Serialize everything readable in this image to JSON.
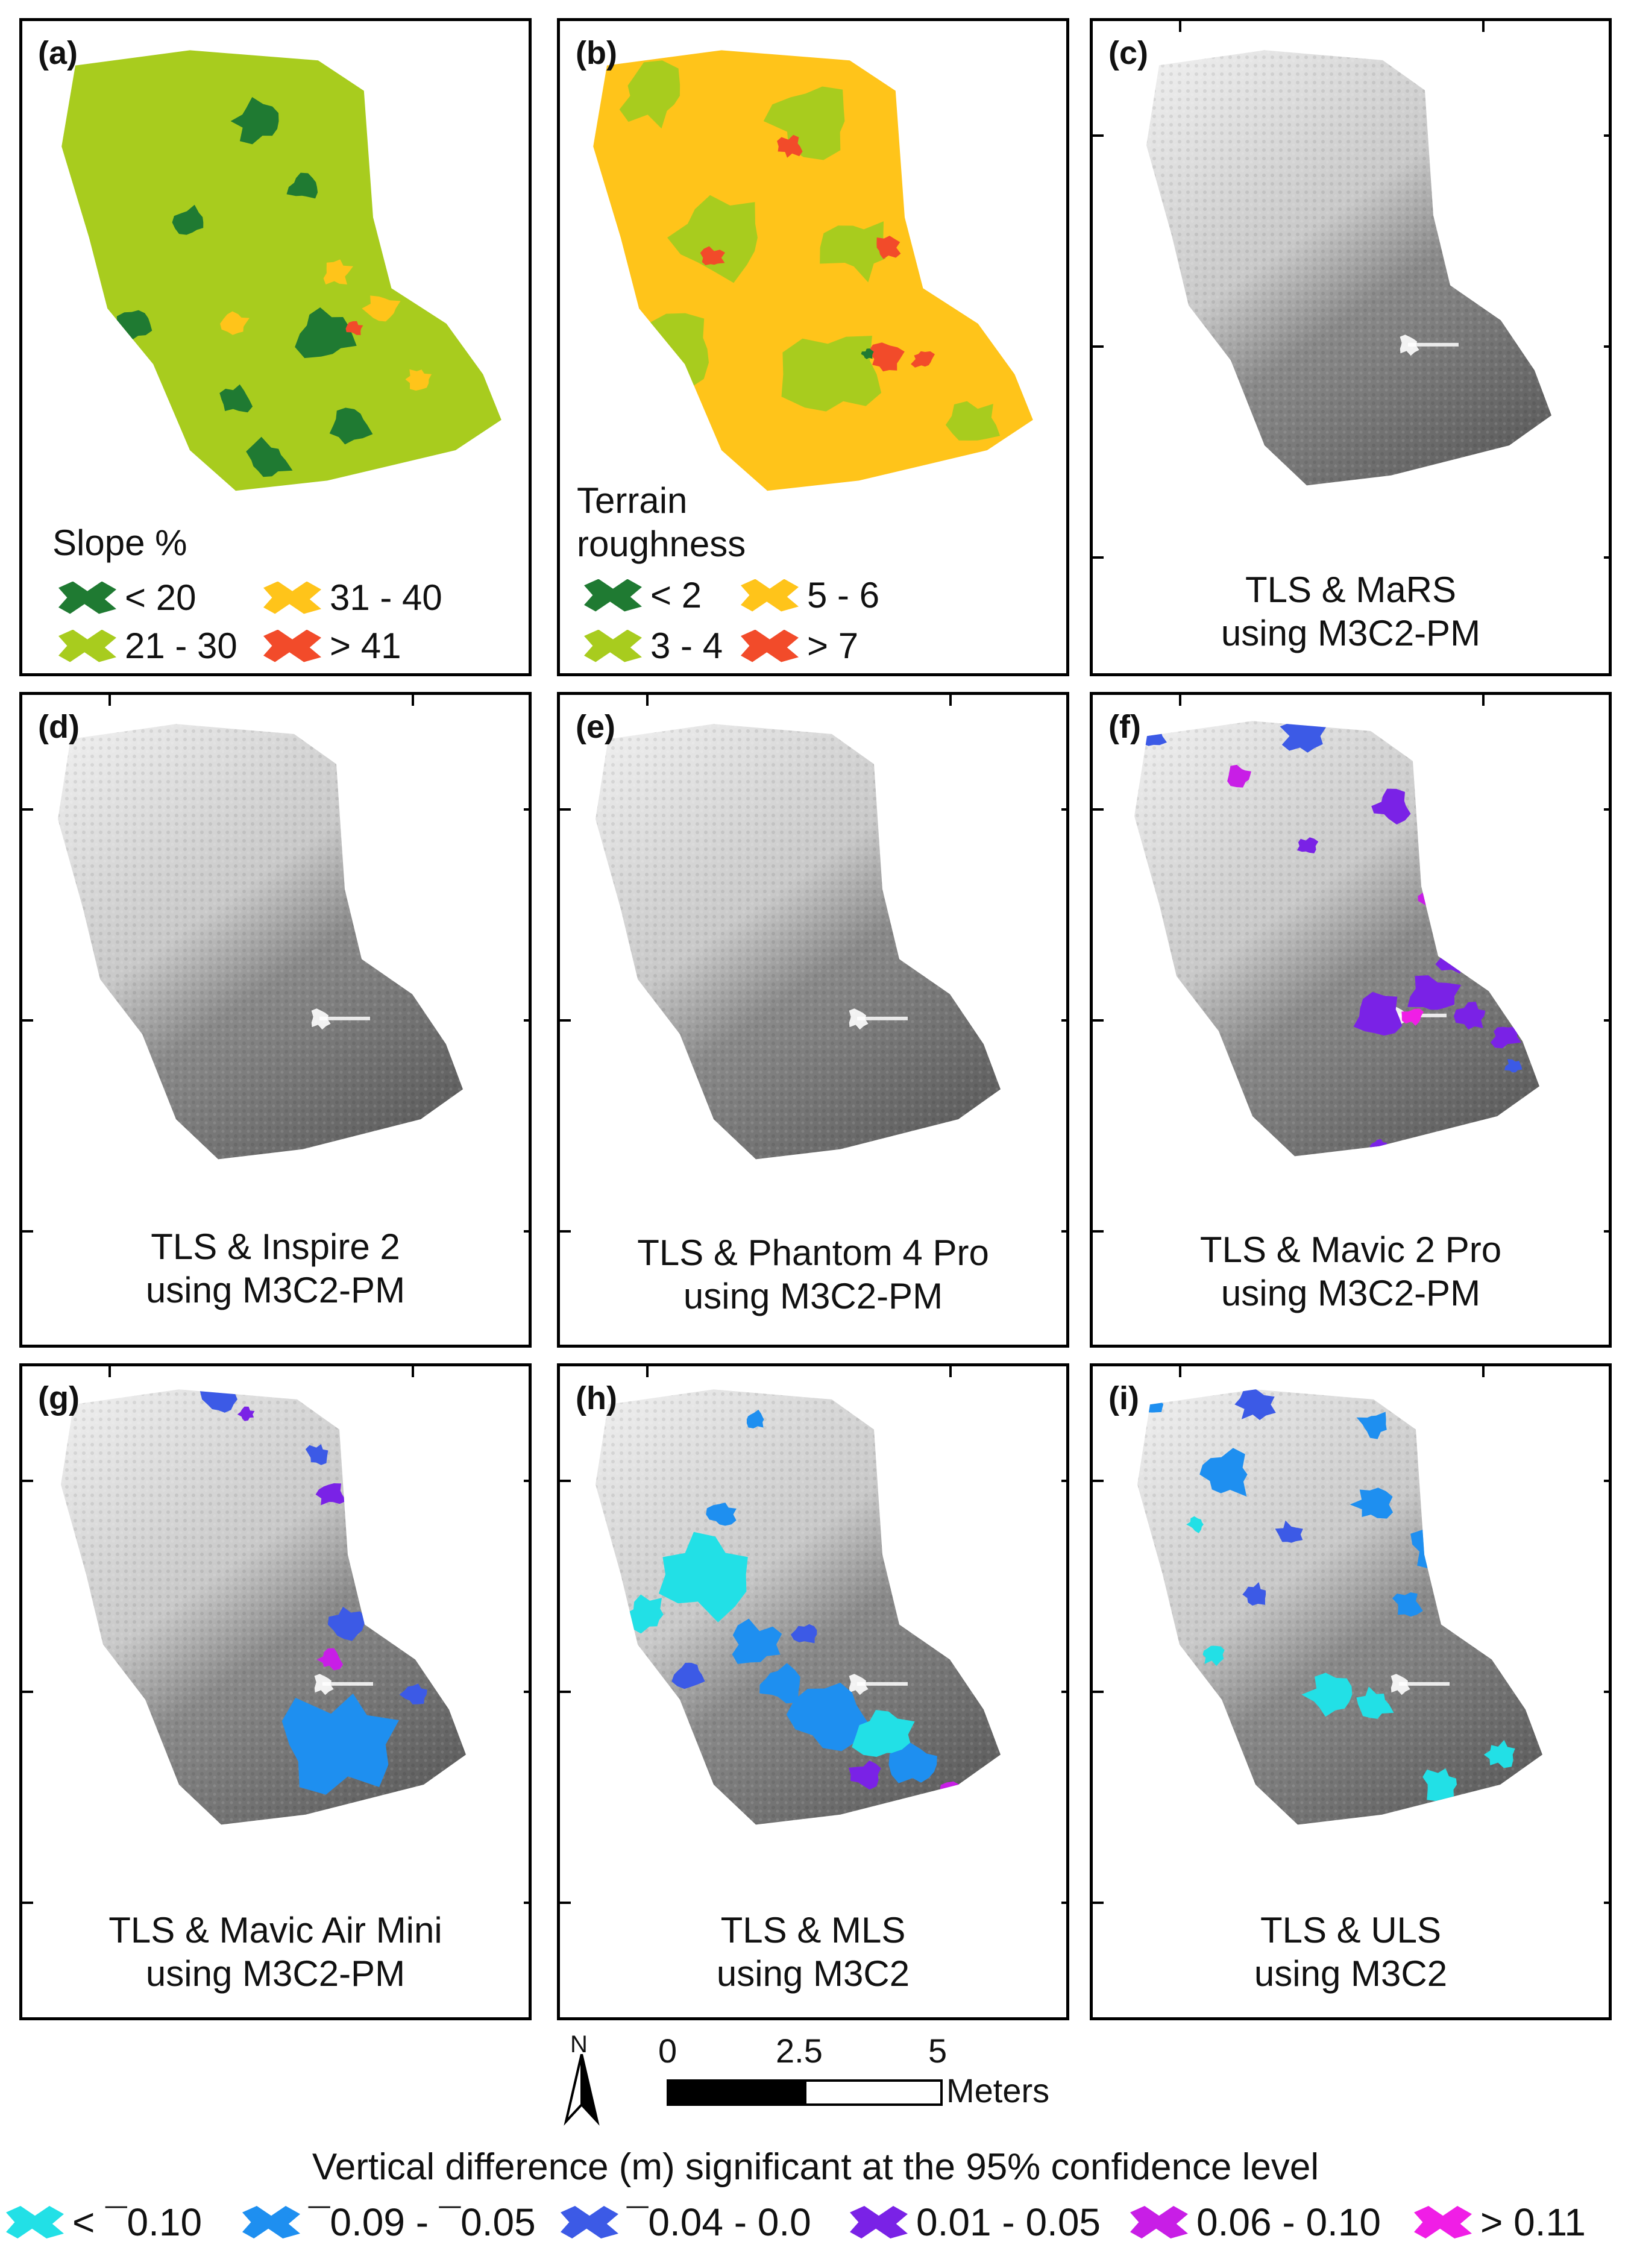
{
  "panels": [
    {
      "id": "a",
      "label": "(a)",
      "caption": "",
      "type": "slope"
    },
    {
      "id": "b",
      "label": "(b)",
      "caption": "",
      "type": "roughness"
    },
    {
      "id": "c",
      "label": "(c)",
      "caption": "TLS & MaRS\nusing M3C2-PM",
      "type": "diff",
      "overlay": "none"
    },
    {
      "id": "d",
      "label": "(d)",
      "caption": "TLS & Inspire 2\nusing M3C2-PM",
      "type": "diff",
      "overlay": "none"
    },
    {
      "id": "e",
      "label": "(e)",
      "caption": "TLS & Phantom 4 Pro\nusing M3C2-PM",
      "type": "diff",
      "overlay": "none"
    },
    {
      "id": "f",
      "label": "(f)",
      "caption": "TLS & Mavic 2 Pro\nusing M3C2-PM",
      "type": "diff",
      "overlay": "f"
    },
    {
      "id": "g",
      "label": "(g)",
      "caption": "TLS & Mavic Air Mini\nusing M3C2-PM",
      "type": "diff",
      "overlay": "g"
    },
    {
      "id": "h",
      "label": "(h)",
      "caption": "TLS & MLS\nusing M3C2",
      "type": "diff",
      "overlay": "h"
    },
    {
      "id": "i",
      "label": "(i)",
      "caption": "TLS & ULS\nusing M3C2",
      "type": "diff",
      "overlay": "i"
    }
  ],
  "slope_legend": {
    "title": "Slope %",
    "items": [
      {
        "label": "< 20",
        "color": "#1f7a32"
      },
      {
        "label": "31 - 40",
        "color": "#ffc41a"
      },
      {
        "label": "21 - 30",
        "color": "#a8cc1e"
      },
      {
        "label": "> 41",
        "color": "#f24b2a"
      }
    ]
  },
  "roughness_legend": {
    "title_line1": "Terrain",
    "title_line2": "roughness",
    "items": [
      {
        "label": "< 2",
        "color": "#1f7a32"
      },
      {
        "label": "5 - 6",
        "color": "#ffc41a"
      },
      {
        "label": "3 - 4",
        "color": "#a8cc1e"
      },
      {
        "label": "> 7",
        "color": "#f24b2a"
      }
    ]
  },
  "scale_bar": {
    "north_label": "N",
    "ticks": [
      "0",
      "2.5",
      "5"
    ],
    "unit": "Meters"
  },
  "vertical_difference_legend": {
    "title": "Vertical difference (m) significant at the 95% confidence level",
    "items": [
      {
        "label": "< ¯0.10",
        "color": "#22e0e6"
      },
      {
        "label": "¯0.09 - ¯0.05",
        "color": "#1e8ff0"
      },
      {
        "label": "¯0.04 - 0.0",
        "color": "#3c5ae6"
      },
      {
        "label": "0.01 - 0.05",
        "color": "#7a22e6"
      },
      {
        "label": "0.06 - 0.10",
        "color": "#c81ee6"
      },
      {
        "label": "> 0.11",
        "color": "#f01ee6"
      }
    ]
  }
}
